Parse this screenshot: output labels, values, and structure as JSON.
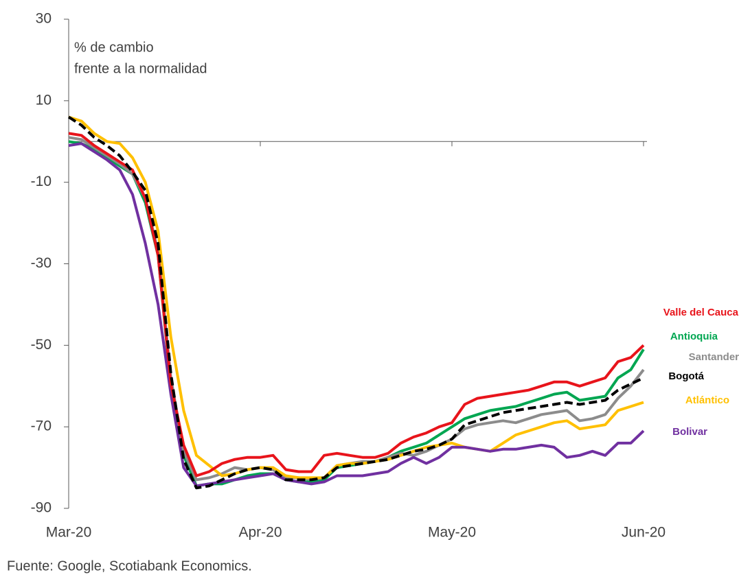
{
  "chart_data": {
    "type": "line",
    "ylabel_lines": [
      "% de cambio",
      "frente a la normalidad"
    ],
    "source": "Fuente: Google, Scotiabank Economics.",
    "categories": [
      "Mar-20",
      null,
      null,
      null,
      null,
      null,
      null,
      null,
      null,
      null,
      null,
      null,
      null,
      null,
      null,
      "Apr-20",
      null,
      null,
      null,
      null,
      null,
      null,
      null,
      null,
      null,
      null,
      null,
      null,
      null,
      null,
      "May-20",
      null,
      null,
      null,
      null,
      null,
      null,
      null,
      null,
      null,
      null,
      null,
      null,
      null,
      null,
      "Jun-20"
    ],
    "ylim": [
      -90,
      30
    ],
    "yticks": [
      30,
      10,
      -10,
      -30,
      -50,
      -70,
      -90
    ],
    "series": [
      {
        "name": "Valle del Cauca",
        "color": "#e8141b",
        "values": [
          2,
          1.5,
          -1,
          -3,
          -5,
          -7,
          -14,
          -28,
          -59.5,
          -74.5,
          -82,
          -81,
          -79,
          -78,
          -77.5,
          -77.5,
          -77,
          -80.5,
          -81,
          -81,
          -77,
          -76.5,
          -77,
          -77.5,
          -77.5,
          -76.5,
          -74,
          -72.5,
          -71.5,
          -70,
          -69,
          -64.5,
          -63,
          -62.5,
          -62,
          -61.5,
          -61,
          -60,
          -59,
          -59,
          -60,
          -59,
          -58,
          -54,
          -53,
          -50
        ]
      },
      {
        "name": "Antioquia",
        "color": "#00a651",
        "values": [
          0,
          -0.5,
          -2,
          -4,
          -6,
          -8,
          -15,
          -28,
          -60,
          -77,
          -84.5,
          -84,
          -84,
          -83,
          -82,
          -81.5,
          -81.5,
          -83,
          -83.5,
          -83.5,
          -83,
          -80,
          -79.5,
          -79,
          -78.5,
          -77.5,
          -76,
          -75,
          -74,
          -72,
          -70,
          -68,
          -67,
          -66,
          -65.5,
          -65,
          -64,
          -63,
          -62,
          -61.5,
          -63.5,
          -63,
          -62.5,
          -58,
          -56,
          -51
        ]
      },
      {
        "name": "Santander",
        "color": "#8c8c8c",
        "values": [
          1,
          0.5,
          -1.5,
          -3.5,
          -5.5,
          -8,
          -14,
          -27,
          -58,
          -76,
          -83,
          -82.5,
          -81.5,
          -80,
          -80.5,
          -80,
          -80.5,
          -82.5,
          -82.5,
          -83,
          -82.5,
          -79.5,
          -79,
          -78.5,
          -78.5,
          -77.5,
          -76.5,
          -77,
          -76,
          -74.5,
          -73,
          -70.5,
          -69.5,
          -69,
          -68.5,
          -69,
          -68,
          -67,
          -66.5,
          -66,
          -68.5,
          -68,
          -67,
          -63,
          -60,
          -56
        ]
      },
      {
        "name": "Bogotá",
        "color": "#000000",
        "dashed": true,
        "values": [
          6,
          4,
          1,
          -1,
          -3.5,
          -7.5,
          -12,
          -25,
          -57,
          -78,
          -85,
          -84.5,
          -83,
          -81.5,
          -80.5,
          -80,
          -80.5,
          -83,
          -83,
          -83,
          -82.5,
          -80,
          -79.5,
          -79,
          -78.5,
          -78,
          -77,
          -76,
          -75.5,
          -74.5,
          -73,
          -69.5,
          -68.5,
          -67.5,
          -66.5,
          -66,
          -65.5,
          -65,
          -64.5,
          -64,
          -64.5,
          -64,
          -63.5,
          -61,
          -59.5,
          -58
        ]
      },
      {
        "name": "Atlántico",
        "color": "#ffc000",
        "values": [
          6,
          5,
          2,
          0,
          -0.5,
          -4,
          -10,
          -22,
          -48,
          -66,
          -77,
          -79.5,
          -82,
          -81.5,
          -80.5,
          -80,
          -80,
          -82,
          -82.5,
          -82.5,
          -82.5,
          -79.5,
          -79,
          -79,
          -78.5,
          -78,
          -77,
          -76,
          -75,
          -74.5,
          -74,
          -75,
          -75.5,
          -76,
          -74,
          -72,
          -71,
          -70,
          -69,
          -68.5,
          -70.5,
          -70,
          -69.5,
          -66,
          -65,
          -64
        ]
      },
      {
        "name": "Bolivar",
        "color": "#7030a0",
        "values": [
          -1,
          -0.5,
          -2.5,
          -4.5,
          -7,
          -13,
          -25,
          -40,
          -62,
          -80,
          -84.5,
          -84,
          -83.5,
          -83,
          -82.5,
          -82,
          -81.5,
          -83,
          -83.5,
          -84,
          -83.5,
          -82,
          -82,
          -82,
          -81.5,
          -81,
          -79,
          -77.5,
          -79,
          -77.5,
          -75,
          -75,
          -75.5,
          -76,
          -75.5,
          -75.5,
          -75,
          -74.5,
          -75,
          -77.5,
          -77,
          -76,
          -77,
          -74,
          -74,
          -71
        ]
      }
    ]
  }
}
